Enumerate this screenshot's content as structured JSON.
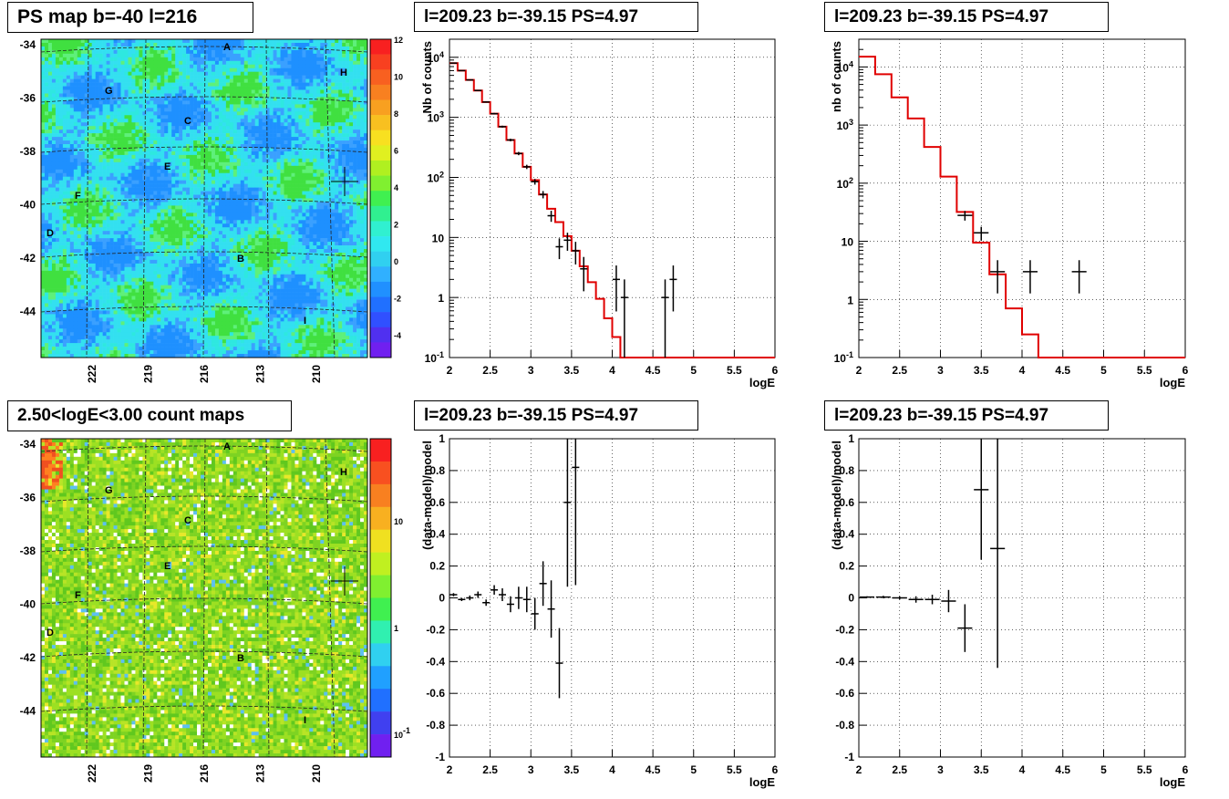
{
  "titles": {
    "map_top": "PS map b=-40 l=216",
    "map_bottom": "2.50<logE<3.00 count maps",
    "spec_left": "l=209.23 b=-39.15 PS=4.97",
    "spec_right": "l=209.23 b=-39.15 PS=4.97",
    "res_left": "l=209.23 b=-39.15 PS=4.97",
    "res_right": "l=209.23 b=-39.15 PS=4.97"
  },
  "chart_data": [
    {
      "type": "heatmap",
      "title": "PS map b=-40 l=216",
      "ylabels": [
        "-34",
        "-36",
        "-38",
        "-40",
        "-42",
        "-44"
      ],
      "xlabels": [
        "222",
        "219",
        "216",
        "213",
        "210"
      ],
      "colorbar_labels": [
        "12",
        "10",
        "8",
        "6",
        "4",
        "2",
        "0",
        "-2",
        "-4"
      ],
      "colorbar_range": [
        -5,
        12
      ],
      "sources": [
        "A",
        "H",
        "G",
        "C",
        "E",
        "F",
        "D",
        "B",
        "I"
      ],
      "colors": {
        "background": "#33e0f0"
      }
    },
    {
      "type": "heatmap",
      "title": "2.50<logE<3.00 count maps",
      "ylabels": [
        "-34",
        "-36",
        "-38",
        "-40",
        "-42",
        "-44"
      ],
      "xlabels": [
        "222",
        "219",
        "216",
        "213",
        "210"
      ],
      "colorbar_labels": [
        "10",
        "1",
        "10-1"
      ],
      "log_scale": true,
      "sources": [
        "A",
        "H",
        "G",
        "C",
        "E",
        "F",
        "D",
        "B",
        "I"
      ],
      "colors": {
        "background": "#7ed322"
      }
    },
    {
      "type": "line",
      "title": "l=209.23 b=-39.15 PS=4.97",
      "xlabel": "logE",
      "ylabel": "Nb of counts",
      "log_y": true,
      "xlim": [
        2,
        6
      ],
      "ylim": [
        0.1,
        20000
      ],
      "xticks": [
        "2",
        "2.5",
        "3",
        "3.5",
        "4",
        "4.5",
        "5",
        "5.5",
        "6"
      ],
      "yticks": [
        "10-1",
        "1",
        "10",
        "102",
        "103",
        "104"
      ],
      "model": {
        "edges": [
          2.0,
          2.1,
          2.2,
          2.3,
          2.4,
          2.5,
          2.6,
          2.7,
          2.8,
          2.9,
          3.0,
          3.1,
          3.2,
          3.3,
          3.4,
          3.5,
          3.6,
          3.7,
          3.8,
          3.9,
          4.0,
          4.1,
          4.2,
          6.0
        ],
        "values": [
          8000,
          6000,
          4200,
          2800,
          1800,
          1150,
          700,
          420,
          250,
          150,
          90,
          52,
          30,
          18,
          10.5,
          6,
          3.3,
          1.8,
          0.95,
          0.45,
          0.22,
          0.1,
          0.1
        ]
      },
      "data": [
        {
          "x": 2.05,
          "y": 8000
        },
        {
          "x": 2.15,
          "y": 6000
        },
        {
          "x": 2.25,
          "y": 4200
        },
        {
          "x": 2.35,
          "y": 2800
        },
        {
          "x": 2.45,
          "y": 1800
        },
        {
          "x": 2.55,
          "y": 1150
        },
        {
          "x": 2.65,
          "y": 700
        },
        {
          "x": 2.75,
          "y": 420
        },
        {
          "x": 2.85,
          "y": 250
        },
        {
          "x": 2.95,
          "y": 150
        },
        {
          "x": 3.05,
          "y": 85
        },
        {
          "x": 3.15,
          "y": 52
        },
        {
          "x": 3.25,
          "y": 23
        },
        {
          "x": 3.35,
          "y": 7
        },
        {
          "x": 3.45,
          "y": 9
        },
        {
          "x": 3.55,
          "y": 6
        },
        {
          "x": 3.65,
          "y": 3
        },
        {
          "x": 4.05,
          "y": 2
        },
        {
          "x": 4.15,
          "y": 1
        },
        {
          "x": 4.65,
          "y": 1
        },
        {
          "x": 4.75,
          "y": 2
        }
      ]
    },
    {
      "type": "line",
      "title": "l=209.23 b=-39.15 PS=4.97",
      "xlabel": "logE",
      "ylabel": "nb of counts",
      "log_y": true,
      "xlim": [
        2,
        6
      ],
      "ylim": [
        0.1,
        30000
      ],
      "xticks": [
        "2",
        "2.5",
        "3",
        "3.5",
        "4",
        "4.5",
        "5",
        "5.5",
        "6"
      ],
      "yticks": [
        "10-1",
        "1",
        "10",
        "102",
        "103",
        "104"
      ],
      "model": {
        "edges": [
          2.0,
          2.2,
          2.4,
          2.6,
          2.8,
          3.0,
          3.2,
          3.4,
          3.6,
          3.8,
          4.0,
          4.2,
          6.0
        ],
        "values": [
          15000,
          7500,
          3000,
          1300,
          420,
          130,
          32,
          9.5,
          2.7,
          0.7,
          0.25,
          0.1
        ]
      },
      "data": [
        {
          "x": 3.3,
          "y": 28
        },
        {
          "x": 3.5,
          "y": 14
        },
        {
          "x": 3.7,
          "y": 3
        },
        {
          "x": 4.1,
          "y": 3
        },
        {
          "x": 4.7,
          "y": 3
        }
      ]
    },
    {
      "type": "scatter",
      "title": "l=209.23 b=-39.15 PS=4.97",
      "xlabel": "logE",
      "ylabel": "(data-model)/model",
      "xlim": [
        2,
        6
      ],
      "ylim": [
        -1,
        1
      ],
      "xticks": [
        "2",
        "2.5",
        "3",
        "3.5",
        "4",
        "4.5",
        "5",
        "5.5",
        "6"
      ],
      "yticks": [
        "-1",
        "-0.8",
        "-0.6",
        "-0.4",
        "-0.2",
        "0",
        "0.2",
        "0.4",
        "0.6",
        "0.8",
        "1"
      ],
      "data": [
        {
          "x": 2.05,
          "y": 0.02,
          "err": 0.01
        },
        {
          "x": 2.15,
          "y": -0.01,
          "err": 0.01
        },
        {
          "x": 2.25,
          "y": 0.0,
          "err": 0.015
        },
        {
          "x": 2.35,
          "y": 0.02,
          "err": 0.02
        },
        {
          "x": 2.45,
          "y": -0.03,
          "err": 0.02
        },
        {
          "x": 2.55,
          "y": 0.05,
          "err": 0.03
        },
        {
          "x": 2.65,
          "y": 0.02,
          "err": 0.04
        },
        {
          "x": 2.75,
          "y": -0.04,
          "err": 0.05
        },
        {
          "x": 2.85,
          "y": 0.0,
          "err": 0.07
        },
        {
          "x": 2.95,
          "y": -0.01,
          "err": 0.08
        },
        {
          "x": 3.05,
          "y": -0.1,
          "err": 0.1
        },
        {
          "x": 3.15,
          "y": 0.09,
          "err": 0.14
        },
        {
          "x": 3.25,
          "y": -0.07,
          "err": 0.18
        },
        {
          "x": 3.35,
          "y": -0.41,
          "err": 0.22
        },
        {
          "x": 3.45,
          "y": 0.6,
          "err": 0.53
        },
        {
          "x": 3.55,
          "y": 0.82,
          "err": 0.74
        }
      ]
    },
    {
      "type": "scatter",
      "title": "l=209.23 b=-39.15 PS=4.97",
      "xlabel": "logE",
      "ylabel": "(data-model)/model",
      "xlim": [
        2,
        6
      ],
      "ylim": [
        -1,
        1
      ],
      "xticks": [
        "2",
        "2.5",
        "3",
        "3.5",
        "4",
        "4.5",
        "5",
        "5.5",
        "6"
      ],
      "yticks": [
        "-1",
        "-0.8",
        "-0.6",
        "-0.4",
        "-0.2",
        "0",
        "0.2",
        "0.4",
        "0.6",
        "0.8",
        "1"
      ],
      "data": [
        {
          "x": 2.1,
          "y": 0.005,
          "err": 0.005
        },
        {
          "x": 2.3,
          "y": 0.005,
          "err": 0.008
        },
        {
          "x": 2.5,
          "y": 0.0,
          "err": 0.01
        },
        {
          "x": 2.7,
          "y": -0.01,
          "err": 0.02
        },
        {
          "x": 2.9,
          "y": -0.01,
          "err": 0.03
        },
        {
          "x": 3.1,
          "y": -0.02,
          "err": 0.07
        },
        {
          "x": 3.3,
          "y": -0.19,
          "err": 0.15
        },
        {
          "x": 3.5,
          "y": 0.68,
          "err": 0.44
        },
        {
          "x": 3.7,
          "y": 0.31,
          "err": 0.75
        }
      ]
    }
  ]
}
